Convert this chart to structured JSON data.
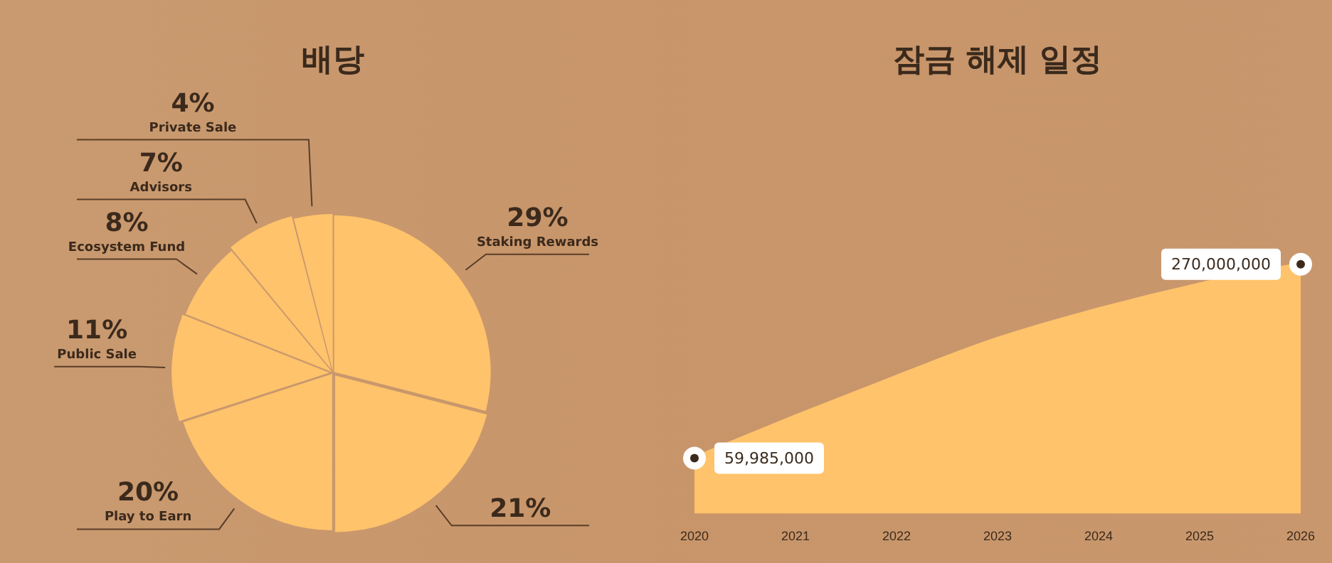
{
  "chart_data": [
    {
      "type": "pie",
      "title": "배당",
      "categories": [
        "Staking Rewards",
        null,
        "Play to Earn",
        "Public Sale",
        "Ecosystem Fund",
        "Advisors",
        "Private Sale"
      ],
      "values": [
        29,
        21,
        20,
        11,
        8,
        7,
        4
      ],
      "colors": [
        "#ffc36b",
        "#ffc36b",
        "#ffc36b",
        "#ffc36b",
        "#ffc36b",
        "#ffc36b",
        "#ffc36b"
      ],
      "value_labels": [
        "29%",
        "21%",
        "20%",
        "11%",
        "8%",
        "7%",
        "4%"
      ]
    },
    {
      "type": "area",
      "title": "잠금 해제 일정",
      "categories": [
        "2020",
        "2021",
        "2022",
        "2023",
        "2024",
        "2025",
        "2026"
      ],
      "values": [
        59985000,
        105000000,
        148000000,
        189000000,
        221000000,
        248000000,
        270000000
      ],
      "color": "#ffc36b",
      "value_labels": [
        "59,985,000",
        null,
        null,
        null,
        null,
        null,
        "270,000,000"
      ]
    }
  ]
}
